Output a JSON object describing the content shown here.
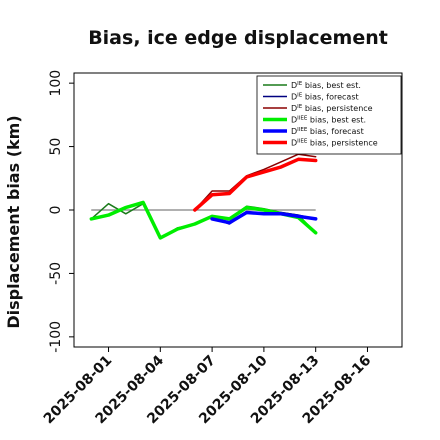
{
  "chart_data": {
    "type": "line",
    "title": "Bias, ice edge displacement",
    "xlabel": "",
    "ylabel": "Displacement bias (km)",
    "ylim": [
      -108,
      108
    ],
    "xlim": [
      "2025-07-30",
      "2025-08-18"
    ],
    "grid": false,
    "legend_position": "top-right",
    "zero_line_color": "#808080",
    "y_ticks": [
      -100,
      -50,
      0,
      50,
      100
    ],
    "x_ticks": [
      {
        "date": "2025-08-01",
        "label": "2025-08-01",
        "color": "#111111"
      },
      {
        "date": "2025-08-04",
        "label": "2025-08-04",
        "color": "#111111"
      },
      {
        "date": "2025-08-07",
        "label": "2025-08-07",
        "color": "#2e8b2e"
      },
      {
        "date": "2025-08-10",
        "label": "2025-08-10",
        "color": "#111111"
      },
      {
        "date": "2025-08-13",
        "label": "2025-08-13",
        "color": "#111111"
      },
      {
        "date": "2025-08-16",
        "label": "2025-08-16",
        "color": "#111111"
      }
    ],
    "series": [
      {
        "name": "DIE bias, best est.",
        "color": "#1a7a1a",
        "width": 1.5,
        "x": [
          "2025-07-31",
          "2025-08-01",
          "2025-08-02",
          "2025-08-03",
          "2025-08-04",
          "2025-08-05",
          "2025-08-06",
          "2025-08-07",
          "2025-08-08",
          "2025-08-09",
          "2025-08-10",
          "2025-08-11",
          "2025-08-12",
          "2025-08-13"
        ],
        "y": [
          -7,
          5,
          -3,
          5,
          -22,
          -14,
          -11,
          -5,
          -7,
          3,
          1,
          -2,
          -4,
          -18
        ]
      },
      {
        "name": "DIE bias, forecast",
        "color": "#000080",
        "width": 1.5,
        "x": [
          "2025-08-07",
          "2025-08-08",
          "2025-08-09",
          "2025-08-10",
          "2025-08-11",
          "2025-08-12",
          "2025-08-13"
        ],
        "y": [
          -6,
          -11,
          -2,
          -3,
          -2,
          -4,
          -7
        ]
      },
      {
        "name": "DIE bias, persistence",
        "color": "#8b0000",
        "width": 1.5,
        "x": [
          "2025-08-06",
          "2025-08-07",
          "2025-08-08",
          "2025-08-09",
          "2025-08-10",
          "2025-08-11",
          "2025-08-12",
          "2025-08-13"
        ],
        "y": [
          0,
          15,
          15,
          27,
          32,
          38,
          44,
          42
        ]
      },
      {
        "name": "DIIEE bias, best est.",
        "color": "#00ee00",
        "width": 3.5,
        "x": [
          "2025-07-31",
          "2025-08-01",
          "2025-08-02",
          "2025-08-03",
          "2025-08-04",
          "2025-08-05",
          "2025-08-06",
          "2025-08-07",
          "2025-08-08",
          "2025-08-09",
          "2025-08-10",
          "2025-08-11",
          "2025-08-12",
          "2025-08-13"
        ],
        "y": [
          -7,
          -4,
          2,
          6,
          -22,
          -15,
          -11,
          -5,
          -7,
          2,
          0,
          -3,
          -6,
          -18
        ]
      },
      {
        "name": "DIIEE bias, forecast",
        "color": "#0000ff",
        "width": 3.5,
        "x": [
          "2025-08-07",
          "2025-08-08",
          "2025-08-09",
          "2025-08-10",
          "2025-08-11",
          "2025-08-12",
          "2025-08-13"
        ],
        "y": [
          -7,
          -10,
          -2,
          -3,
          -3,
          -5,
          -7
        ]
      },
      {
        "name": "DIIEE bias, persistence",
        "color": "#ff0000",
        "width": 3.5,
        "x": [
          "2025-08-06",
          "2025-08-07",
          "2025-08-08",
          "2025-08-09",
          "2025-08-10",
          "2025-08-11",
          "2025-08-12",
          "2025-08-13"
        ],
        "y": [
          0,
          12,
          13,
          26,
          30,
          34,
          40,
          39
        ]
      }
    ],
    "legend_entries": [
      {
        "prefix": "D",
        "sup": "IE",
        "suffix": " bias, best est."
      },
      {
        "prefix": "D",
        "sup": "IE",
        "suffix": " bias, forecast"
      },
      {
        "prefix": "D",
        "sup": "IE",
        "suffix": " bias, persistence"
      },
      {
        "prefix": "D",
        "sup": "IIEE",
        "suffix": " bias, best est."
      },
      {
        "prefix": "D",
        "sup": "IIEE",
        "suffix": " bias, forecast"
      },
      {
        "prefix": "D",
        "sup": "IIEE",
        "suffix": " bias, persistence"
      }
    ]
  }
}
